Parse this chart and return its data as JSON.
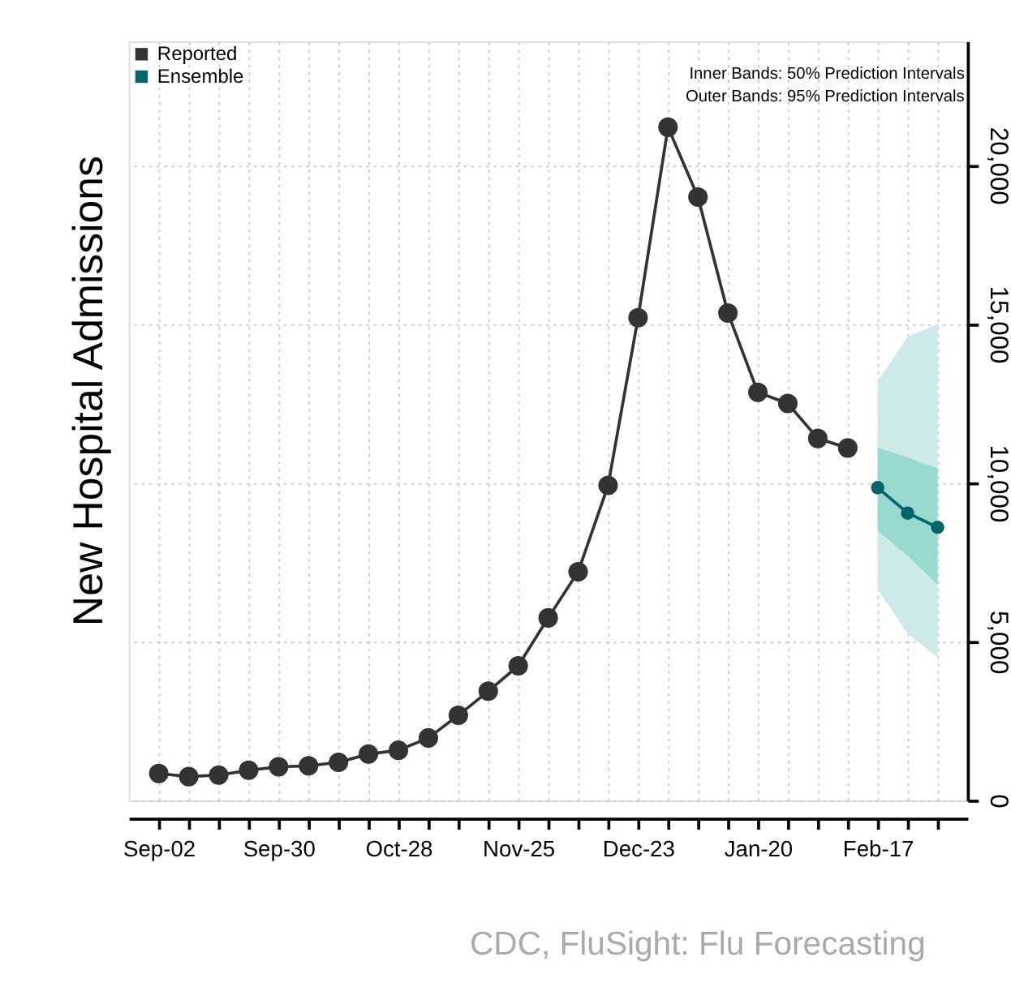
{
  "chart_data": {
    "type": "line",
    "ylabel": "New Hospital Admissions",
    "categories": [
      "Sep-02",
      null,
      null,
      null,
      "Sep-30",
      null,
      null,
      null,
      "Oct-28",
      null,
      null,
      null,
      "Nov-25",
      null,
      null,
      null,
      "Dec-23",
      null,
      null,
      null,
      "Jan-20",
      null,
      null,
      null,
      "Feb-17",
      null,
      null
    ],
    "series": [
      {
        "name": "Reported",
        "color": "#333333",
        "values": [
          850,
          750,
          800,
          950,
          1060,
          1090,
          1200,
          1460,
          1580,
          1970,
          2680,
          3440,
          4240,
          5750,
          7200,
          9920,
          15200,
          21200,
          19000,
          15350,
          12850,
          12500,
          11400,
          11100,
          null,
          null,
          null
        ]
      },
      {
        "name": "Ensemble",
        "color": "#00666b",
        "values": [
          null,
          null,
          null,
          null,
          null,
          null,
          null,
          null,
          null,
          null,
          null,
          null,
          null,
          null,
          null,
          null,
          null,
          null,
          null,
          null,
          null,
          null,
          null,
          null,
          9850,
          9050,
          8600
        ],
        "lower": [
          null,
          null,
          null,
          null,
          null,
          null,
          null,
          null,
          null,
          null,
          null,
          null,
          null,
          null,
          null,
          null,
          null,
          null,
          null,
          null,
          null,
          null,
          null,
          null,
          8500,
          7700,
          6800
        ],
        "upper": [
          null,
          null,
          null,
          null,
          null,
          null,
          null,
          null,
          null,
          null,
          null,
          null,
          null,
          null,
          null,
          null,
          null,
          null,
          null,
          null,
          null,
          null,
          null,
          null,
          11100,
          10800,
          10450
        ]
      },
      {
        "color": "#cdeae8",
        "values": [
          null,
          null,
          null,
          null,
          null,
          null,
          null,
          null,
          null,
          null,
          null,
          null,
          null,
          null,
          null,
          null,
          null,
          null,
          null,
          null,
          null,
          null,
          null,
          null,
          null,
          null,
          null
        ],
        "lower": [
          null,
          null,
          null,
          null,
          null,
          null,
          null,
          null,
          null,
          null,
          null,
          null,
          null,
          null,
          null,
          null,
          null,
          null,
          null,
          null,
          null,
          null,
          null,
          null,
          6650,
          5250,
          4500
        ],
        "upper": [
          null,
          null,
          null,
          null,
          null,
          null,
          null,
          null,
          null,
          null,
          null,
          null,
          null,
          null,
          null,
          null,
          null,
          null,
          null,
          null,
          null,
          null,
          null,
          null,
          13200,
          14600,
          15000
        ]
      }
    ],
    "ylim": [
      0,
      23900
    ],
    "yticks": [
      0,
      {
        "value": 5000,
        "label": "5,000"
      },
      {
        "value": 10000,
        "label": "10,000"
      },
      {
        "value": 15000,
        "label": "15,000"
      },
      {
        "value": 20000,
        "label": "20,000"
      }
    ],
    "grid": true,
    "legend": "top left",
    "marker": "circle",
    "line_style": "solid",
    "annotations": [
      "Inner Bands: 50% Prediction Intervals",
      "Outer Bands: 95% Prediction Intervals",
      "CDC, FluSight: Flu Forecasting"
    ]
  }
}
